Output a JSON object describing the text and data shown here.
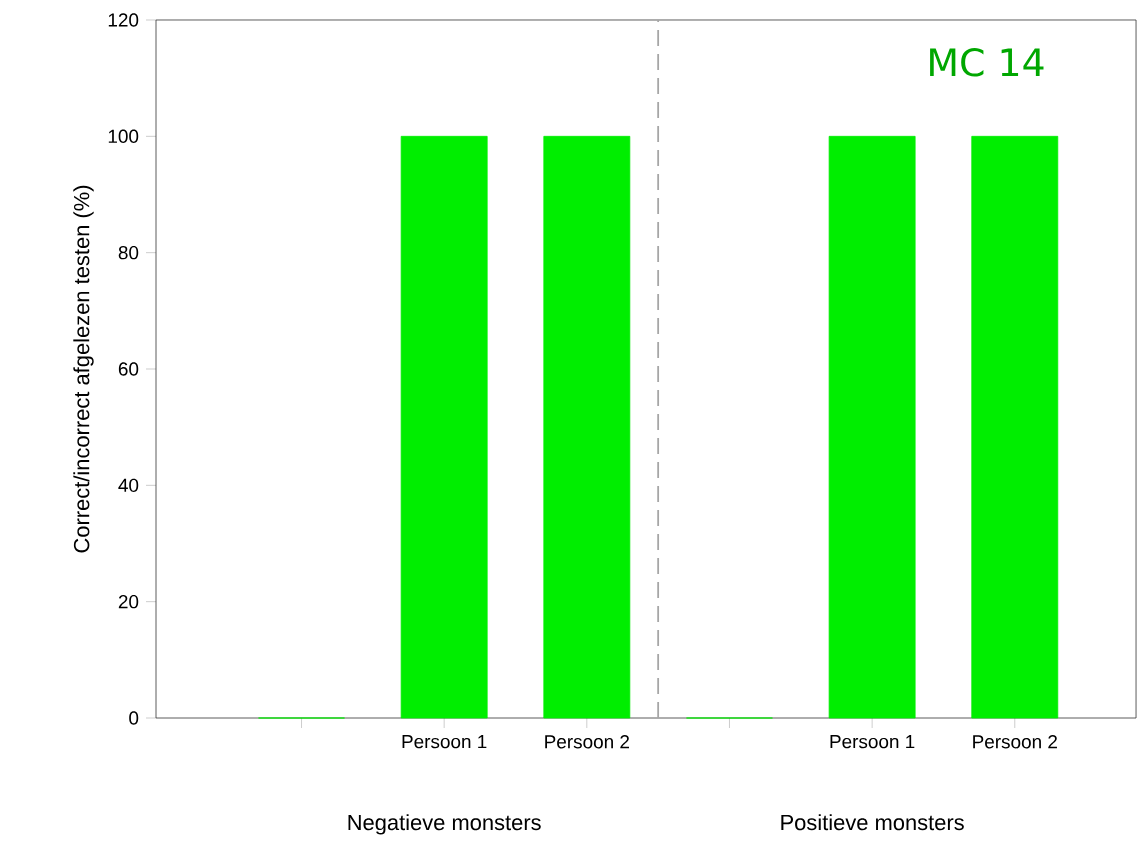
{
  "chart_data": {
    "type": "bar",
    "ylabel": "Correct/incorrect afgelezen testen (%)",
    "categories": [
      null,
      "Persoon 1",
      "Persoon 2",
      null,
      "Persoon 1",
      "Persoon 2"
    ],
    "values": [
      0,
      100,
      100,
      0,
      100,
      100
    ],
    "color": "#00ee00",
    "ylim": [
      0,
      120
    ],
    "yticks": [
      0,
      20,
      40,
      60,
      80,
      100,
      120
    ],
    "annotations": [
      "MC 14",
      "Negatieve monsters",
      "Positieve monsters"
    ]
  }
}
